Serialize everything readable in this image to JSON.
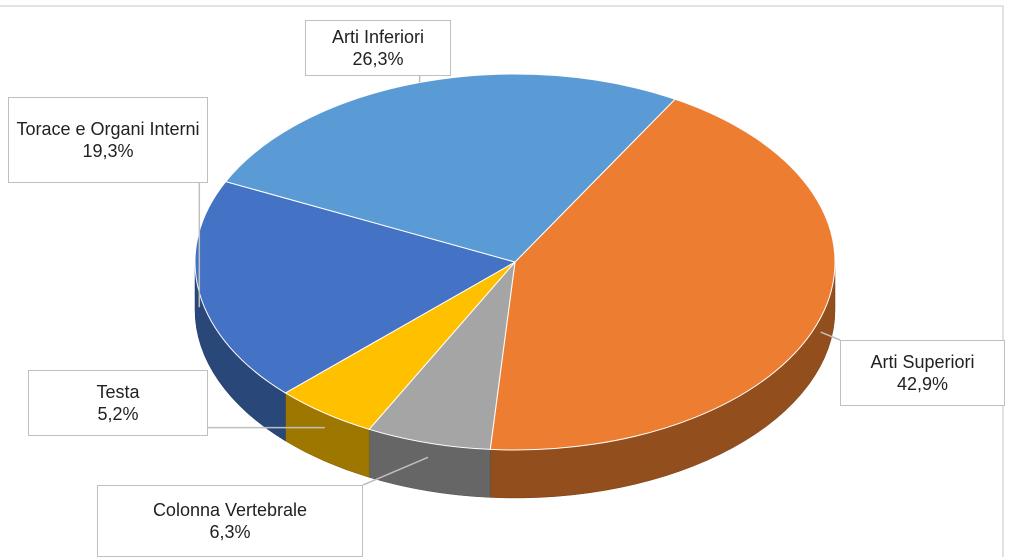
{
  "chart_data": {
    "type": "pie3d",
    "categories": [
      "Arti Superiori",
      "Colonna Vertebrale",
      "Testa",
      "Torace e Organi Interni",
      "Arti Inferiori"
    ],
    "values": [
      42.9,
      6.3,
      5.2,
      19.3,
      26.3
    ],
    "value_labels": [
      "42,9%",
      "6,3%",
      "5,2%",
      "19,3%",
      "26,3%"
    ],
    "colors": [
      "#ed7d31",
      "#a5a5a5",
      "#ffc000",
      "#4472c4",
      "#5b9bd5"
    ]
  }
}
